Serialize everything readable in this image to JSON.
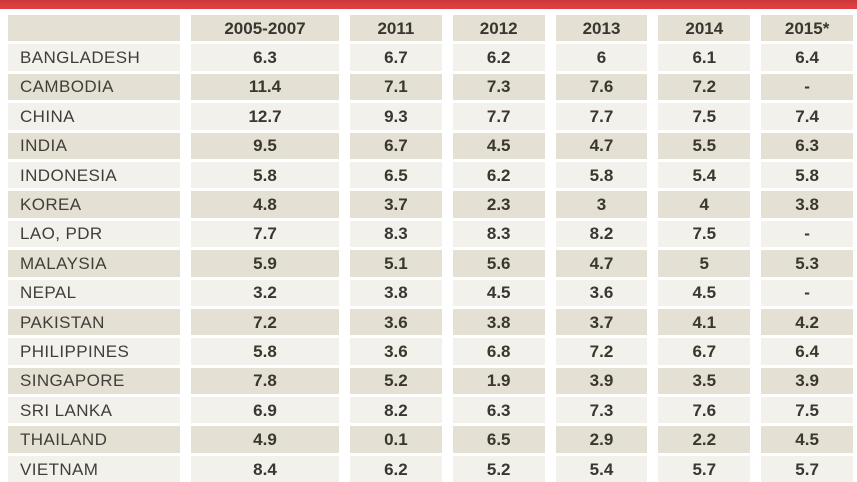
{
  "colors": {
    "top_bar": "#dc3e41",
    "row_dark": "#e4e1d4",
    "row_light": "#f2f1eb",
    "header_bg": "#e4e1d4",
    "text": "#3b3a35",
    "background": "#ffffff"
  },
  "chart_data": {
    "type": "table",
    "title": "",
    "columns": [
      "",
      "2005-2007",
      "2011",
      "2012",
      "2013",
      "2014",
      "2015*"
    ],
    "rows": [
      {
        "label": "BANGLADESH",
        "values": [
          "6.3",
          "6.7",
          "6.2",
          "6",
          "6.1",
          "6.4"
        ]
      },
      {
        "label": "CAMBODIA",
        "values": [
          "11.4",
          "7.1",
          "7.3",
          "7.6",
          "7.2",
          "-"
        ]
      },
      {
        "label": "CHINA",
        "values": [
          "12.7",
          "9.3",
          "7.7",
          "7.7",
          "7.5",
          "7.4"
        ]
      },
      {
        "label": "INDIA",
        "values": [
          "9.5",
          "6.7",
          "4.5",
          "4.7",
          "5.5",
          "6.3"
        ]
      },
      {
        "label": "INDONESIA",
        "values": [
          "5.8",
          "6.5",
          "6.2",
          "5.8",
          "5.4",
          "5.8"
        ]
      },
      {
        "label": "KOREA",
        "values": [
          "4.8",
          "3.7",
          "2.3",
          "3",
          "4",
          "3.8"
        ]
      },
      {
        "label": "LAO, PDR",
        "values": [
          "7.7",
          "8.3",
          "8.3",
          "8.2",
          "7.5",
          "-"
        ]
      },
      {
        "label": "MALAYSIA",
        "values": [
          "5.9",
          "5.1",
          "5.6",
          "4.7",
          "5",
          "5.3"
        ]
      },
      {
        "label": "NEPAL",
        "values": [
          "3.2",
          "3.8",
          "4.5",
          "3.6",
          "4.5",
          "-"
        ]
      },
      {
        "label": "PAKISTAN",
        "values": [
          "7.2",
          "3.6",
          "3.8",
          "3.7",
          "4.1",
          "4.2"
        ]
      },
      {
        "label": "PHILIPPINES",
        "values": [
          "5.8",
          "3.6",
          "6.8",
          "7.2",
          "6.7",
          "6.4"
        ]
      },
      {
        "label": "SINGAPORE",
        "values": [
          "7.8",
          "5.2",
          "1.9",
          "3.9",
          "3.5",
          "3.9"
        ]
      },
      {
        "label": "SRI LANKA",
        "values": [
          "6.9",
          "8.2",
          "6.3",
          "7.3",
          "7.6",
          "7.5"
        ]
      },
      {
        "label": "THAILAND",
        "values": [
          "4.9",
          "0.1",
          "6.5",
          "2.9",
          "2.2",
          "4.5"
        ]
      },
      {
        "label": "VIETNAM",
        "values": [
          "8.4",
          "6.2",
          "5.2",
          "5.4",
          "5.7",
          "5.7"
        ]
      }
    ],
    "layout": {
      "striped_rows": true,
      "first_row_shade": "light",
      "value_alignment": "center",
      "label_alignment": "left",
      "grid": "white gutters between cells, no borders"
    }
  }
}
